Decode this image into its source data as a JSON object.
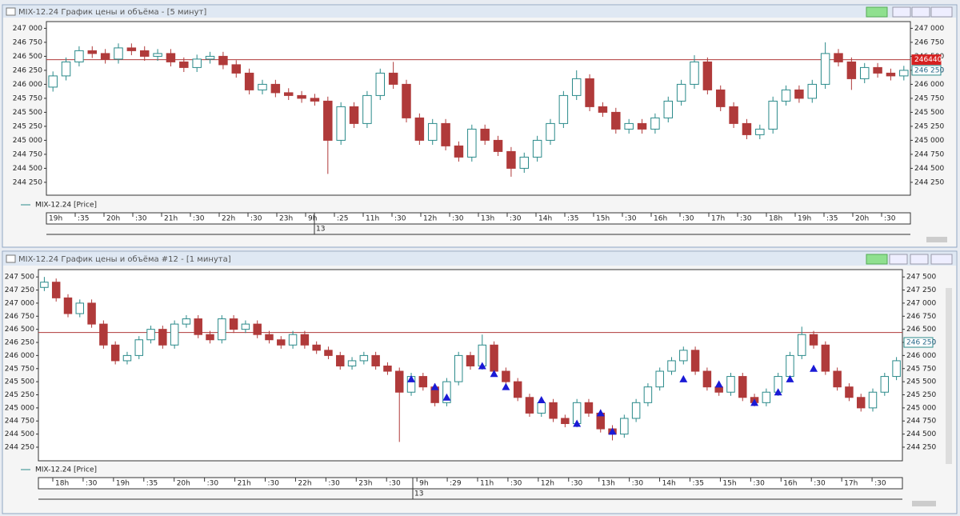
{
  "chart_data": [
    {
      "type": "candlestick",
      "title": "MIX-12.24 График цены и объёма - [5 минут]",
      "series": [
        {
          "name": "MIX-12.24 [Price]",
          "up_color": "#2a8a8a",
          "down_color": "#b03a3a",
          "open": [
            245950,
            246150,
            246400,
            246600,
            246550,
            246450,
            246650,
            246600,
            246500,
            246550,
            246400,
            246300,
            246450,
            246500,
            246350,
            246200,
            245900,
            246000,
            245850,
            245800,
            245750,
            245700,
            245000,
            245600,
            245300,
            245800,
            246200,
            246000,
            245400,
            245000,
            245300,
            244900,
            244700,
            245200,
            245000,
            244800,
            244500,
            244700,
            245000,
            245300,
            245800,
            246100,
            245600,
            245500,
            245200,
            245300,
            245200,
            245400,
            245700,
            246000,
            246400,
            245900,
            245600,
            245300,
            245100,
            245200,
            245700,
            245900,
            245750,
            246000,
            246550,
            246400,
            246100,
            246300,
            246200,
            246150
          ],
          "high": [
            246230,
            246480,
            246680,
            246680,
            246630,
            246730,
            246730,
            246680,
            246630,
            246630,
            246480,
            246530,
            246580,
            246580,
            246430,
            246280,
            246080,
            246080,
            245930,
            245880,
            245830,
            245780,
            245680,
            245680,
            245880,
            246280,
            246400,
            246080,
            245480,
            245380,
            245380,
            244980,
            245280,
            245280,
            245080,
            244880,
            244780,
            245080,
            245380,
            245880,
            246250,
            246180,
            245680,
            245580,
            245380,
            245380,
            245480,
            245780,
            246080,
            246520,
            246480,
            245980,
            245680,
            245380,
            245280,
            245780,
            245980,
            245980,
            246080,
            246750,
            246630,
            246480,
            246380,
            246380,
            246280,
            246330
          ],
          "low": [
            245870,
            246070,
            246320,
            246470,
            246370,
            246370,
            246520,
            246420,
            246420,
            246320,
            246220,
            246220,
            246370,
            246270,
            246120,
            245820,
            245820,
            245770,
            245720,
            245670,
            245620,
            244400,
            244920,
            245220,
            245220,
            245720,
            245920,
            245320,
            244920,
            244920,
            244820,
            244620,
            244620,
            244920,
            244720,
            244350,
            244420,
            244620,
            244920,
            245220,
            245720,
            245520,
            245420,
            245120,
            245120,
            245120,
            245120,
            245320,
            245620,
            245920,
            245820,
            245520,
            245220,
            245020,
            245020,
            245120,
            245620,
            245670,
            245670,
            245920,
            246320,
            245900,
            246020,
            246120,
            246070,
            246070
          ],
          "close": [
            246150,
            246400,
            246600,
            246550,
            246450,
            246650,
            246600,
            246500,
            246550,
            246400,
            246300,
            246450,
            246500,
            246350,
            246200,
            245900,
            246000,
            245850,
            245800,
            245750,
            245700,
            245000,
            245600,
            245300,
            245800,
            246200,
            246000,
            245400,
            245000,
            245300,
            244900,
            244700,
            245200,
            245000,
            244800,
            244500,
            244700,
            245000,
            245300,
            245800,
            246100,
            245600,
            245500,
            245200,
            245300,
            245200,
            245400,
            245700,
            246000,
            246400,
            245900,
            245600,
            245300,
            245100,
            245200,
            245700,
            245900,
            245750,
            246000,
            246550,
            246400,
            246100,
            246300,
            246200,
            246150,
            246250
          ]
        }
      ],
      "ylim": [
        244020,
        247120
      ],
      "yticks": [
        {
          "value": 244250,
          "label": "244 250"
        },
        {
          "value": 244500,
          "label": "244 500"
        },
        {
          "value": 244750,
          "label": "244 750"
        },
        {
          "value": 245000,
          "label": "245 000"
        },
        {
          "value": 245250,
          "label": "245 250"
        },
        {
          "value": 245500,
          "label": "245 500"
        },
        {
          "value": 245750,
          "label": "245 750"
        },
        {
          "value": 246000,
          "label": "246 000"
        },
        {
          "value": 246250,
          "label": "246 250"
        },
        {
          "value": 246500,
          "label": "246 500"
        },
        {
          "value": 246750,
          "label": "246 750"
        },
        {
          "value": 247000,
          "label": "247 000"
        }
      ],
      "level": 246440,
      "level_color": "#b03a3a",
      "price_labels": [
        {
          "value": 246440,
          "label": "246440",
          "color": "#d62020"
        },
        {
          "value": 246250,
          "label": "246 250",
          "color": "#ffffff"
        }
      ],
      "time_labels": [
        "19h",
        ":35",
        "20h",
        ":30",
        "21h",
        ":30",
        "22h",
        ":30",
        "23h",
        "9h",
        ":25",
        "11h",
        ":30",
        "12h",
        ":30",
        "13h",
        ":30",
        "14h",
        ":35",
        "15h",
        ":30",
        "16h",
        ":30",
        "17h",
        ":30",
        "18h",
        "19h",
        ":35",
        "20h",
        ":30"
      ],
      "date_label": "13"
    },
    {
      "type": "candlestick",
      "title": "MIX-12.24 График цены и объёма #12 - [1 минута]",
      "series": [
        {
          "name": "MIX-12.24 [Price]",
          "up_color": "#2a8a8a",
          "down_color": "#b03a3a",
          "open": [
            247300,
            247400,
            247100,
            246800,
            247000,
            246600,
            246200,
            245900,
            246000,
            246300,
            246500,
            246200,
            246600,
            246700,
            246400,
            246300,
            246700,
            246500,
            246600,
            246400,
            246300,
            246200,
            246400,
            246200,
            246100,
            246000,
            245800,
            245900,
            246000,
            245800,
            245700,
            245300,
            245600,
            245400,
            245100,
            245500,
            246000,
            245800,
            246200,
            245700,
            245500,
            245200,
            244900,
            245100,
            244800,
            244700,
            245100,
            244900,
            244600,
            244500,
            244800,
            245100,
            245400,
            245700,
            245900,
            246100,
            245700,
            245400,
            245300,
            245600,
            245200,
            245100,
            245300,
            245600,
            246000,
            246400,
            246200,
            245700,
            245400,
            245200,
            245000,
            245300,
            245600
          ],
          "high": [
            247500,
            247470,
            247170,
            247070,
            247070,
            246670,
            246270,
            246070,
            246370,
            246570,
            246570,
            246670,
            246770,
            246770,
            246470,
            246770,
            246770,
            246670,
            246670,
            246470,
            246370,
            246470,
            246470,
            246270,
            246170,
            246070,
            245970,
            246070,
            246070,
            245870,
            245770,
            245670,
            245670,
            245470,
            245570,
            246070,
            246070,
            246400,
            246270,
            245770,
            245570,
            245270,
            245170,
            245170,
            244870,
            245170,
            245170,
            244970,
            244670,
            244870,
            245170,
            245470,
            245770,
            245970,
            246170,
            246170,
            245770,
            245470,
            245670,
            245670,
            245270,
            245370,
            245670,
            246070,
            246550,
            246470,
            246270,
            245770,
            245470,
            245270,
            245370,
            245670,
            245970
          ],
          "low": [
            247230,
            247030,
            246730,
            246730,
            246530,
            246130,
            245830,
            245830,
            245930,
            246230,
            246130,
            246130,
            246530,
            246330,
            246230,
            246230,
            246430,
            246430,
            246330,
            246230,
            246130,
            246130,
            246130,
            246030,
            245930,
            245730,
            245730,
            245830,
            245730,
            245630,
            244350,
            245230,
            245330,
            245030,
            245030,
            245430,
            245730,
            245730,
            245630,
            245430,
            245130,
            244830,
            244830,
            244730,
            244630,
            244630,
            244830,
            244530,
            244380,
            244430,
            244730,
            245030,
            245330,
            245630,
            245830,
            245630,
            245330,
            245230,
            245230,
            245130,
            245030,
            245030,
            245230,
            245530,
            245930,
            246130,
            245630,
            245330,
            245130,
            244930,
            244930,
            245230,
            245530
          ],
          "close": [
            247400,
            247100,
            246800,
            247000,
            246600,
            246200,
            245900,
            246000,
            246300,
            246500,
            246200,
            246600,
            246700,
            246400,
            246300,
            246700,
            246500,
            246600,
            246400,
            246300,
            246200,
            246400,
            246200,
            246100,
            246000,
            245800,
            245900,
            246000,
            245800,
            245700,
            245300,
            245600,
            245400,
            245100,
            245500,
            246000,
            245800,
            246200,
            245700,
            245500,
            245200,
            244900,
            245100,
            244800,
            244700,
            245100,
            244900,
            244600,
            244500,
            244800,
            245100,
            245400,
            245700,
            245900,
            246100,
            245700,
            245400,
            245300,
            245600,
            245200,
            245100,
            245300,
            245600,
            246000,
            246400,
            246200,
            245700,
            245400,
            245200,
            245000,
            245300,
            245600,
            245900
          ]
        }
      ],
      "markers": {
        "color": "#1a1ad6",
        "x": [
          31,
          33,
          34,
          37,
          38,
          39,
          42,
          45,
          47,
          48,
          54,
          57,
          60,
          62,
          63,
          65
        ],
        "values": [
          245550,
          245400,
          245200,
          245800,
          245650,
          245400,
          245150,
          244700,
          244900,
          244550,
          245550,
          245450,
          245100,
          245300,
          245550,
          245750
        ]
      },
      "ylim": [
        243990,
        247640
      ],
      "yticks": [
        {
          "value": 244250,
          "label": "244 250"
        },
        {
          "value": 244500,
          "label": "244 500"
        },
        {
          "value": 244750,
          "label": "244 750"
        },
        {
          "value": 245000,
          "label": "245 000"
        },
        {
          "value": 245250,
          "label": "245 250"
        },
        {
          "value": 245500,
          "label": "245 500"
        },
        {
          "value": 245750,
          "label": "245 750"
        },
        {
          "value": 246000,
          "label": "246 000"
        },
        {
          "value": 246250,
          "label": "246 250"
        },
        {
          "value": 246500,
          "label": "246 500"
        },
        {
          "value": 246750,
          "label": "246 750"
        },
        {
          "value": 247000,
          "label": "247 000"
        },
        {
          "value": 247250,
          "label": "247 250"
        },
        {
          "value": 247500,
          "label": "247 500"
        }
      ],
      "level": 246440,
      "level_color": "#b03a3a",
      "price_labels": [
        {
          "value": 246250,
          "label": "246 250",
          "color": "#ffffff"
        }
      ],
      "time_labels": [
        "18h",
        ":30",
        "19h",
        ":35",
        "20h",
        ":30",
        "21h",
        ":30",
        "22h",
        ":30",
        "23h",
        ":30",
        "9h",
        ":29",
        "11h",
        ":30",
        "12h",
        ":30",
        "13h",
        ":30",
        "14h",
        ":35",
        "15h",
        ":30",
        "16h",
        ":30",
        "17h",
        ":30"
      ],
      "date_label": "13"
    }
  ]
}
